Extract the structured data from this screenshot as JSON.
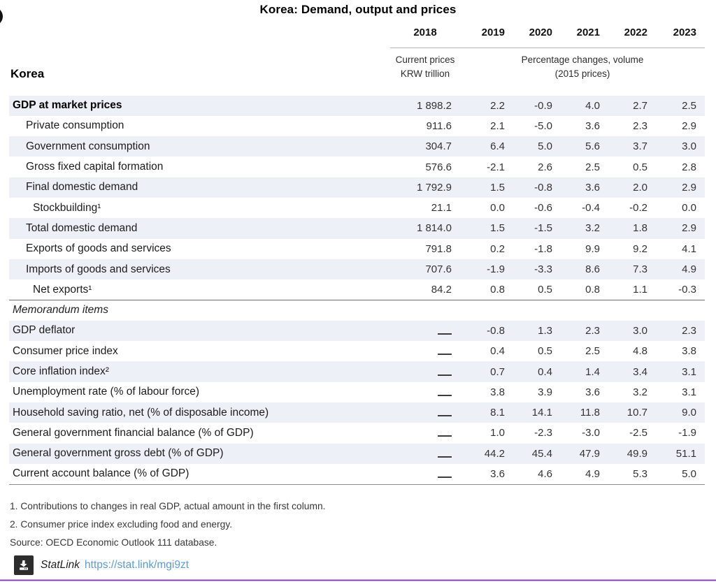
{
  "page": {
    "title": "Korea: Demand, output and prices",
    "region_label": "Korea"
  },
  "table": {
    "years": [
      "2018",
      "2019",
      "2020",
      "2021",
      "2022",
      "2023"
    ],
    "unit_first_col": "Current prices\nKRW trillion",
    "unit_other_cols": "Percentage changes, volume\n(2015 prices)",
    "rows": [
      {
        "label": "GDP at market prices",
        "indent": 0,
        "bold": true,
        "values": [
          "1 898.2",
          "2.2",
          "-0.9",
          "4.0",
          "2.7",
          "2.5"
        ]
      },
      {
        "label": "Private consumption",
        "indent": 1,
        "values": [
          "911.6",
          "2.1",
          "-5.0",
          "3.6",
          "2.3",
          "2.9"
        ]
      },
      {
        "label": "Government consumption",
        "indent": 1,
        "values": [
          "304.7",
          "6.4",
          "5.0",
          "5.6",
          "3.7",
          "3.0"
        ]
      },
      {
        "label": "Gross fixed capital formation",
        "indent": 1,
        "values": [
          "576.6",
          "-2.1",
          "2.6",
          "2.5",
          "0.5",
          "2.8"
        ]
      },
      {
        "label": "Final domestic demand",
        "indent": 1,
        "values": [
          "1 792.9",
          "1.5",
          "-0.8",
          "3.6",
          "2.0",
          "2.9"
        ]
      },
      {
        "label": "Stockbuilding¹",
        "indent": 2,
        "values": [
          "21.1",
          "0.0",
          "-0.6",
          "-0.4",
          "-0.2",
          "0.0"
        ]
      },
      {
        "label": "Total domestic demand",
        "indent": 1,
        "values": [
          "1 814.0",
          "1.5",
          "-1.5",
          "3.2",
          "1.8",
          "2.9"
        ]
      },
      {
        "label": "Exports of goods and services",
        "indent": 1,
        "values": [
          "791.8",
          "0.2",
          "-1.8",
          "9.9",
          "9.2",
          "4.1"
        ]
      },
      {
        "label": "Imports of goods and services",
        "indent": 1,
        "values": [
          "707.6",
          "-1.9",
          "-3.3",
          "8.6",
          "7.3",
          "4.9"
        ]
      },
      {
        "label": "Net exports¹",
        "indent": 2,
        "values": [
          "84.2",
          "0.8",
          "0.5",
          "0.8",
          "1.1",
          "-0.3"
        ]
      },
      {
        "label": "Memorandum items",
        "section": true,
        "values": []
      },
      {
        "label": "GDP deflator",
        "indent": 0,
        "values": [
          "_",
          "-0.8",
          "1.3",
          "2.3",
          "3.0",
          "2.3"
        ]
      },
      {
        "label": "Consumer price index",
        "indent": 0,
        "values": [
          "_",
          "0.4",
          "0.5",
          "2.5",
          "4.8",
          "3.8"
        ]
      },
      {
        "label": "Core inflation index²",
        "indent": 0,
        "values": [
          "_",
          "0.7",
          "0.4",
          "1.4",
          "3.4",
          "3.1"
        ]
      },
      {
        "label": "Unemployment rate (% of labour force)",
        "indent": 0,
        "values": [
          "_",
          "3.8",
          "3.9",
          "3.6",
          "3.2",
          "3.1"
        ]
      },
      {
        "label": "Household saving ratio, net (% of disposable income)",
        "indent": 0,
        "values": [
          "_",
          "8.1",
          "14.1",
          "11.8",
          "10.7",
          "9.0"
        ]
      },
      {
        "label": "General government financial balance (% of GDP)",
        "indent": 0,
        "values": [
          "_",
          "1.0",
          "-2.3",
          "-3.0",
          "-2.5",
          "-1.9"
        ]
      },
      {
        "label": "General government gross debt (% of GDP)",
        "indent": 0,
        "values": [
          "_",
          "44.2",
          "45.4",
          "47.9",
          "49.9",
          "51.1"
        ]
      },
      {
        "label": "Current account balance (% of GDP)",
        "indent": 0,
        "values": [
          "_",
          "3.6",
          "4.6",
          "4.9",
          "5.3",
          "5.0"
        ]
      }
    ]
  },
  "footnotes": [
    "1. Contributions to changes in real GDP, actual amount in the first column.",
    "2. Consumer price index excluding food and energy."
  ],
  "source": "Source: OECD Economic Outlook 111 database.",
  "statlink": {
    "label": "StatLink",
    "url": "https://stat.link/mgi9zt",
    "icon": "download-icon"
  },
  "colors": {
    "row_shade": "#eef0f7",
    "accent_line": "#8040a8",
    "link": "#5b9bd5"
  }
}
